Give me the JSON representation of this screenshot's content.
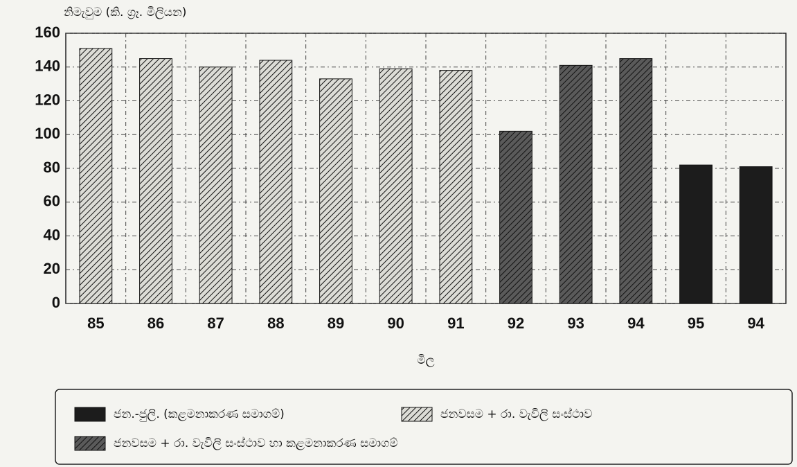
{
  "chart_data": {
    "type": "bar",
    "y_label": "නිමැවුම (කි. ග්‍රෑ. මිලියන)",
    "x_label": "මිල",
    "categories": [
      "85",
      "86",
      "87",
      "88",
      "89",
      "90",
      "91",
      "92",
      "93",
      "94",
      "95",
      "94"
    ],
    "series": [
      {
        "name": "ජන.-ජුලි. (කළමනාකරණ සමාගම්)",
        "color": "#1c1c1c",
        "hatch": false,
        "values": [
          null,
          null,
          null,
          null,
          null,
          null,
          null,
          null,
          null,
          null,
          82,
          81
        ]
      },
      {
        "name": "ජනවසම + රා. වැවිලි සංස්ථාව",
        "color": "#dcdcd6",
        "hatch": true,
        "values": [
          151,
          145,
          140,
          144,
          133,
          139,
          138,
          null,
          null,
          null,
          null,
          null
        ]
      },
      {
        "name": "ජනවසම + රා. වැවිලි සංස්ථාව හා කළමනාකරණ සමාගම්",
        "color": "#5a5a5a",
        "hatch": true,
        "values": [
          null,
          null,
          null,
          null,
          null,
          null,
          null,
          102,
          141,
          145,
          null,
          null
        ]
      }
    ],
    "ylim": [
      0,
      160
    ],
    "yticks": [
      0,
      20,
      40,
      60,
      80,
      100,
      120,
      140,
      160
    ],
    "grid": true
  }
}
